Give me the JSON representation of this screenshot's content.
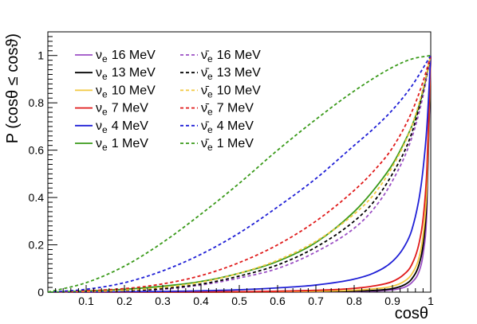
{
  "chart_data": {
    "type": "line",
    "xlabel": "cosθ",
    "ylabel": "P (cosθ ≤ cosϑ)",
    "xlim": [
      0,
      1
    ],
    "ylim": [
      0,
      1.1
    ],
    "x_ticks": [
      "0.1",
      "0.2",
      "0.3",
      "0.4",
      "0.5",
      "0.6",
      "0.7",
      "0.8",
      "0.9",
      "1"
    ],
    "y_ticks": [
      "0",
      "0.2",
      "0.4",
      "0.6",
      "0.8",
      "1"
    ],
    "grid": false,
    "legend_position": "top-left",
    "series": [
      {
        "name": "νe 16 MeV",
        "particle": "ν",
        "subscript": "e",
        "energy": "16 MeV",
        "color": "#9b4fc4",
        "style": "solid",
        "x": [
          0.0,
          0.5,
          0.7,
          0.8,
          0.85,
          0.9,
          0.93,
          0.95,
          0.97,
          0.98,
          0.99,
          1.0
        ],
        "y": [
          0.0,
          0.0,
          0.001,
          0.002,
          0.004,
          0.01,
          0.02,
          0.04,
          0.09,
          0.16,
          0.35,
          1.0
        ]
      },
      {
        "name": "νe 13 MeV",
        "particle": "ν",
        "subscript": "e",
        "energy": "13 MeV",
        "color": "#000000",
        "style": "solid",
        "x": [
          0.0,
          0.5,
          0.7,
          0.8,
          0.85,
          0.9,
          0.93,
          0.95,
          0.97,
          0.98,
          0.99,
          1.0
        ],
        "y": [
          0.0,
          0.0,
          0.002,
          0.004,
          0.007,
          0.015,
          0.03,
          0.055,
          0.12,
          0.2,
          0.4,
          1.0
        ]
      },
      {
        "name": "νe 10 MeV",
        "particle": "ν",
        "subscript": "e",
        "energy": "10 MeV",
        "color": "#f2c840",
        "style": "solid",
        "x": [
          0.0,
          0.5,
          0.7,
          0.8,
          0.85,
          0.9,
          0.93,
          0.95,
          0.97,
          0.98,
          0.99,
          1.0
        ],
        "y": [
          0.0,
          0.001,
          0.004,
          0.008,
          0.014,
          0.025,
          0.045,
          0.075,
          0.15,
          0.24,
          0.45,
          1.0
        ]
      },
      {
        "name": "νe 7 MeV",
        "particle": "ν",
        "subscript": "e",
        "energy": "7 MeV",
        "color": "#e01b1b",
        "style": "solid",
        "x": [
          0.0,
          0.5,
          0.7,
          0.8,
          0.85,
          0.9,
          0.93,
          0.95,
          0.97,
          0.98,
          0.99,
          1.0
        ],
        "y": [
          0.0,
          0.002,
          0.008,
          0.016,
          0.026,
          0.045,
          0.075,
          0.115,
          0.21,
          0.31,
          0.52,
          1.0
        ]
      },
      {
        "name": "νe 4 MeV",
        "particle": "ν",
        "subscript": "e",
        "energy": "4 MeV",
        "color": "#1f1fd6",
        "style": "solid",
        "x": [
          0.0,
          0.3,
          0.5,
          0.6,
          0.7,
          0.8,
          0.85,
          0.9,
          0.93,
          0.95,
          0.97,
          0.98,
          0.99,
          1.0
        ],
        "y": [
          0.0,
          0.003,
          0.01,
          0.018,
          0.03,
          0.055,
          0.08,
          0.13,
          0.19,
          0.26,
          0.4,
          0.52,
          0.7,
          1.0
        ]
      },
      {
        "name": "νe 1 MeV",
        "particle": "ν",
        "subscript": "e",
        "energy": "1 MeV",
        "color": "#3a9a1a",
        "style": "solid",
        "x": [
          0.0,
          0.2,
          0.3,
          0.4,
          0.5,
          0.6,
          0.7,
          0.8,
          0.85,
          0.9,
          0.93,
          0.95,
          0.97,
          0.99,
          1.0
        ],
        "y": [
          0.0,
          0.012,
          0.025,
          0.045,
          0.08,
          0.13,
          0.21,
          0.34,
          0.43,
          0.54,
          0.63,
          0.7,
          0.79,
          0.92,
          1.0
        ]
      },
      {
        "name": "ν̄e 16 MeV",
        "particle": "ν̄",
        "subscript": "e",
        "energy": "16 MeV",
        "color": "#9b4fc4",
        "style": "dashed",
        "x": [
          0.0,
          0.2,
          0.3,
          0.4,
          0.5,
          0.6,
          0.7,
          0.8,
          0.85,
          0.9,
          0.95,
          0.98,
          1.0
        ],
        "y": [
          0.0,
          0.005,
          0.012,
          0.03,
          0.06,
          0.1,
          0.17,
          0.27,
          0.35,
          0.47,
          0.65,
          0.83,
          1.0
        ]
      },
      {
        "name": "ν̄e 13 MeV",
        "particle": "ν̄",
        "subscript": "e",
        "energy": "13 MeV",
        "color": "#000000",
        "style": "dashed",
        "x": [
          0.0,
          0.2,
          0.3,
          0.4,
          0.5,
          0.6,
          0.7,
          0.8,
          0.85,
          0.9,
          0.95,
          0.98,
          1.0
        ],
        "y": [
          0.0,
          0.006,
          0.015,
          0.034,
          0.068,
          0.115,
          0.19,
          0.3,
          0.38,
          0.5,
          0.67,
          0.85,
          1.0
        ]
      },
      {
        "name": "ν̄e 10 MeV",
        "particle": "ν̄",
        "subscript": "e",
        "energy": "10 MeV",
        "color": "#f2c840",
        "style": "dashed",
        "x": [
          0.0,
          0.2,
          0.3,
          0.4,
          0.5,
          0.6,
          0.7,
          0.8,
          0.85,
          0.9,
          0.95,
          0.98,
          1.0
        ],
        "y": [
          0.0,
          0.008,
          0.02,
          0.042,
          0.08,
          0.135,
          0.215,
          0.33,
          0.41,
          0.53,
          0.7,
          0.86,
          1.0
        ]
      },
      {
        "name": "ν̄e 7 MeV",
        "particle": "ν̄",
        "subscript": "e",
        "energy": "7 MeV",
        "color": "#e01b1b",
        "style": "dashed",
        "x": [
          0.0,
          0.2,
          0.3,
          0.4,
          0.5,
          0.6,
          0.7,
          0.8,
          0.85,
          0.9,
          0.95,
          0.98,
          1.0
        ],
        "y": [
          0.0,
          0.015,
          0.035,
          0.07,
          0.125,
          0.2,
          0.3,
          0.43,
          0.51,
          0.61,
          0.76,
          0.89,
          1.0
        ]
      },
      {
        "name": "ν̄e 4 MeV",
        "particle": "ν̄",
        "subscript": "e",
        "energy": "4 MeV",
        "color": "#1f1fd6",
        "style": "dashed",
        "x": [
          0.0,
          0.1,
          0.2,
          0.3,
          0.4,
          0.5,
          0.6,
          0.7,
          0.8,
          0.85,
          0.9,
          0.95,
          1.0
        ],
        "y": [
          0.0,
          0.012,
          0.04,
          0.09,
          0.16,
          0.25,
          0.36,
          0.48,
          0.62,
          0.69,
          0.77,
          0.87,
          1.0
        ]
      },
      {
        "name": "ν̄e 1 MeV",
        "particle": "ν̄",
        "subscript": "e",
        "energy": "1 MeV",
        "color": "#3a9a1a",
        "style": "dashed",
        "x": [
          0.0,
          0.1,
          0.2,
          0.3,
          0.4,
          0.5,
          0.6,
          0.7,
          0.8,
          0.9,
          0.95,
          1.0
        ],
        "y": [
          0.0,
          0.04,
          0.11,
          0.21,
          0.33,
          0.46,
          0.6,
          0.73,
          0.85,
          0.95,
          0.985,
          1.0
        ]
      }
    ]
  }
}
